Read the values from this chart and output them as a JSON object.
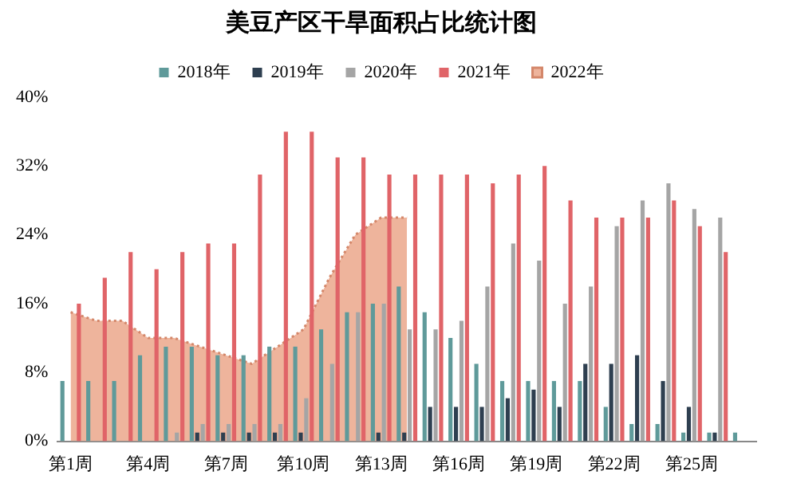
{
  "chart_data": {
    "type": "bar",
    "title": "美豆产区干旱面积占比统计图",
    "categories": [
      "第1周",
      null,
      null,
      "第4周",
      null,
      null,
      "第7周",
      null,
      null,
      "第10周",
      null,
      null,
      "第13周",
      null,
      null,
      "第16周",
      null,
      null,
      "第19周",
      null,
      null,
      "第22周",
      null,
      null,
      "第25周",
      null,
      null
    ],
    "series": [
      {
        "name": "2022年",
        "type": "area",
        "color": "#eeb49c",
        "line_style": "dotted",
        "values": [
          15,
          14,
          14,
          12,
          12,
          11,
          10,
          9,
          11,
          13,
          19,
          24,
          26,
          26,
          null,
          null,
          null,
          null,
          null,
          null,
          null,
          null,
          null,
          null,
          null,
          null,
          null
        ]
      },
      {
        "name": "2018年",
        "color": "#5f9a9a",
        "values": [
          7,
          7,
          7,
          10,
          11,
          11,
          10,
          10,
          11,
          11,
          13,
          15,
          16,
          18,
          15,
          12,
          9,
          7,
          7,
          7,
          7,
          4,
          2,
          2,
          1,
          1,
          1
        ]
      },
      {
        "name": "2019年",
        "color": "#2e3f50",
        "values": [
          null,
          null,
          null,
          null,
          null,
          1,
          1,
          1,
          1,
          1,
          null,
          null,
          1,
          1,
          4,
          4,
          4,
          5,
          6,
          4,
          9,
          9,
          10,
          7,
          4,
          1,
          null
        ]
      },
      {
        "name": "2020年",
        "color": "#a5a5a5",
        "values": [
          null,
          null,
          null,
          null,
          1,
          2,
          2,
          2,
          2,
          5,
          9,
          15,
          16,
          13,
          13,
          14,
          18,
          23,
          21,
          16,
          18,
          25,
          28,
          30,
          27,
          26,
          null
        ]
      },
      {
        "name": "2021年",
        "color": "#e06468",
        "values": [
          16,
          19,
          22,
          20,
          22,
          23,
          23,
          31,
          36,
          36,
          33,
          33,
          31,
          31,
          31,
          31,
          30,
          31,
          32,
          28,
          26,
          26,
          26,
          28,
          25,
          22,
          null
        ]
      }
    ],
    "ylim": [
      0,
      40
    ],
    "yticks": [
      {
        "value": 0,
        "label": "0%"
      },
      {
        "value": 8,
        "label": "8%"
      },
      {
        "value": 16,
        "label": "16%"
      },
      {
        "value": 24,
        "label": "24%"
      },
      {
        "value": 32,
        "label": "32%"
      },
      {
        "value": 40,
        "label": "40%"
      }
    ],
    "grid": false,
    "legend": "top"
  }
}
